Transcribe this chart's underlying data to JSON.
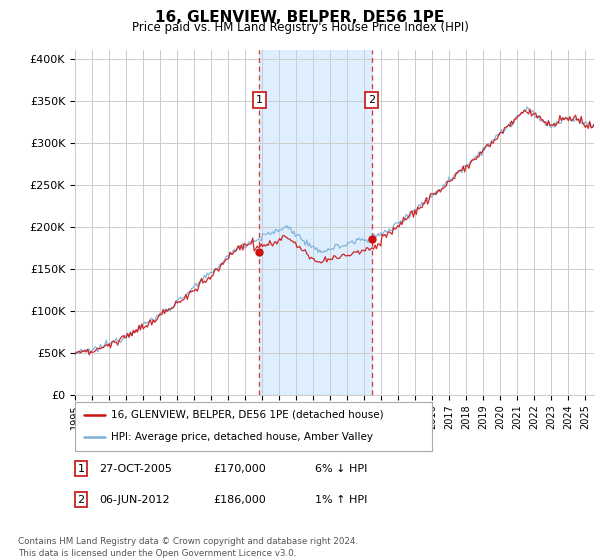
{
  "title": "16, GLENVIEW, BELPER, DE56 1PE",
  "subtitle": "Price paid vs. HM Land Registry's House Price Index (HPI)",
  "ylabel_ticks": [
    "£0",
    "£50K",
    "£100K",
    "£150K",
    "£200K",
    "£250K",
    "£300K",
    "£350K",
    "£400K"
  ],
  "ytick_values": [
    0,
    50000,
    100000,
    150000,
    200000,
    250000,
    300000,
    350000,
    400000
  ],
  "ylim": [
    0,
    410000
  ],
  "xlim_start": 1995.0,
  "xlim_end": 2025.5,
  "hpi_color": "#7aafd4",
  "sale_color": "#cc1111",
  "shading_color": "#ddeeff",
  "grid_color": "#cccccc",
  "background_color": "#ffffff",
  "marker1_x": 2005.82,
  "marker1_y": 170000,
  "marker2_x": 2012.43,
  "marker2_y": 186000,
  "sale_label": "16, GLENVIEW, BELPER, DE56 1PE (detached house)",
  "hpi_label": "HPI: Average price, detached house, Amber Valley",
  "footer": "Contains HM Land Registry data © Crown copyright and database right 2024.\nThis data is licensed under the Open Government Licence v3.0.",
  "xtick_years": [
    1995,
    1996,
    1997,
    1998,
    1999,
    2000,
    2001,
    2002,
    2003,
    2004,
    2005,
    2006,
    2007,
    2008,
    2009,
    2010,
    2011,
    2012,
    2013,
    2014,
    2015,
    2016,
    2017,
    2018,
    2019,
    2020,
    2021,
    2022,
    2023,
    2024,
    2025
  ]
}
